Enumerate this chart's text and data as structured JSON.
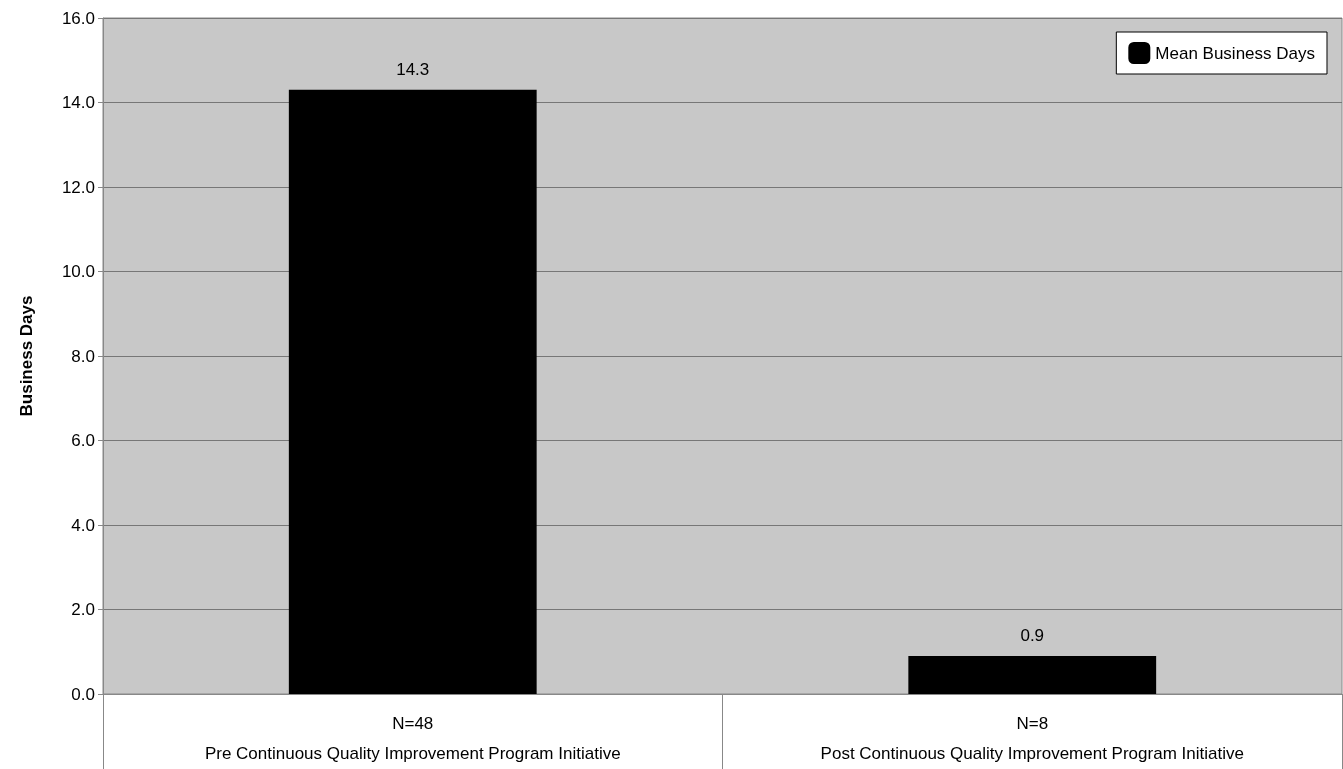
{
  "chart_data": {
    "type": "bar",
    "ylabel": "Business Days",
    "categories": [
      "N=48\nPre Continuous Quality Improvement Program Initiative",
      "N=8\nPost Continuous Quality Improvement Program Initiative"
    ],
    "series": [
      {
        "name": "Mean Business Days",
        "color": "#000000",
        "values": [
          14.3,
          0.9
        ]
      }
    ],
    "ylim": [
      0,
      16
    ],
    "yticks": [
      {
        "value": 0,
        "label": "0.0"
      },
      {
        "value": 2,
        "label": "2.0"
      },
      {
        "value": 4,
        "label": "4.0"
      },
      {
        "value": 6,
        "label": "6.0"
      },
      {
        "value": 8,
        "label": "8.0"
      },
      {
        "value": 10,
        "label": "10.0"
      },
      {
        "value": 12,
        "label": "12.0"
      },
      {
        "value": 14,
        "label": "14.0"
      },
      {
        "value": 16,
        "label": "16.0"
      }
    ],
    "grid": "y",
    "legend": "top right",
    "data_labels": true
  }
}
